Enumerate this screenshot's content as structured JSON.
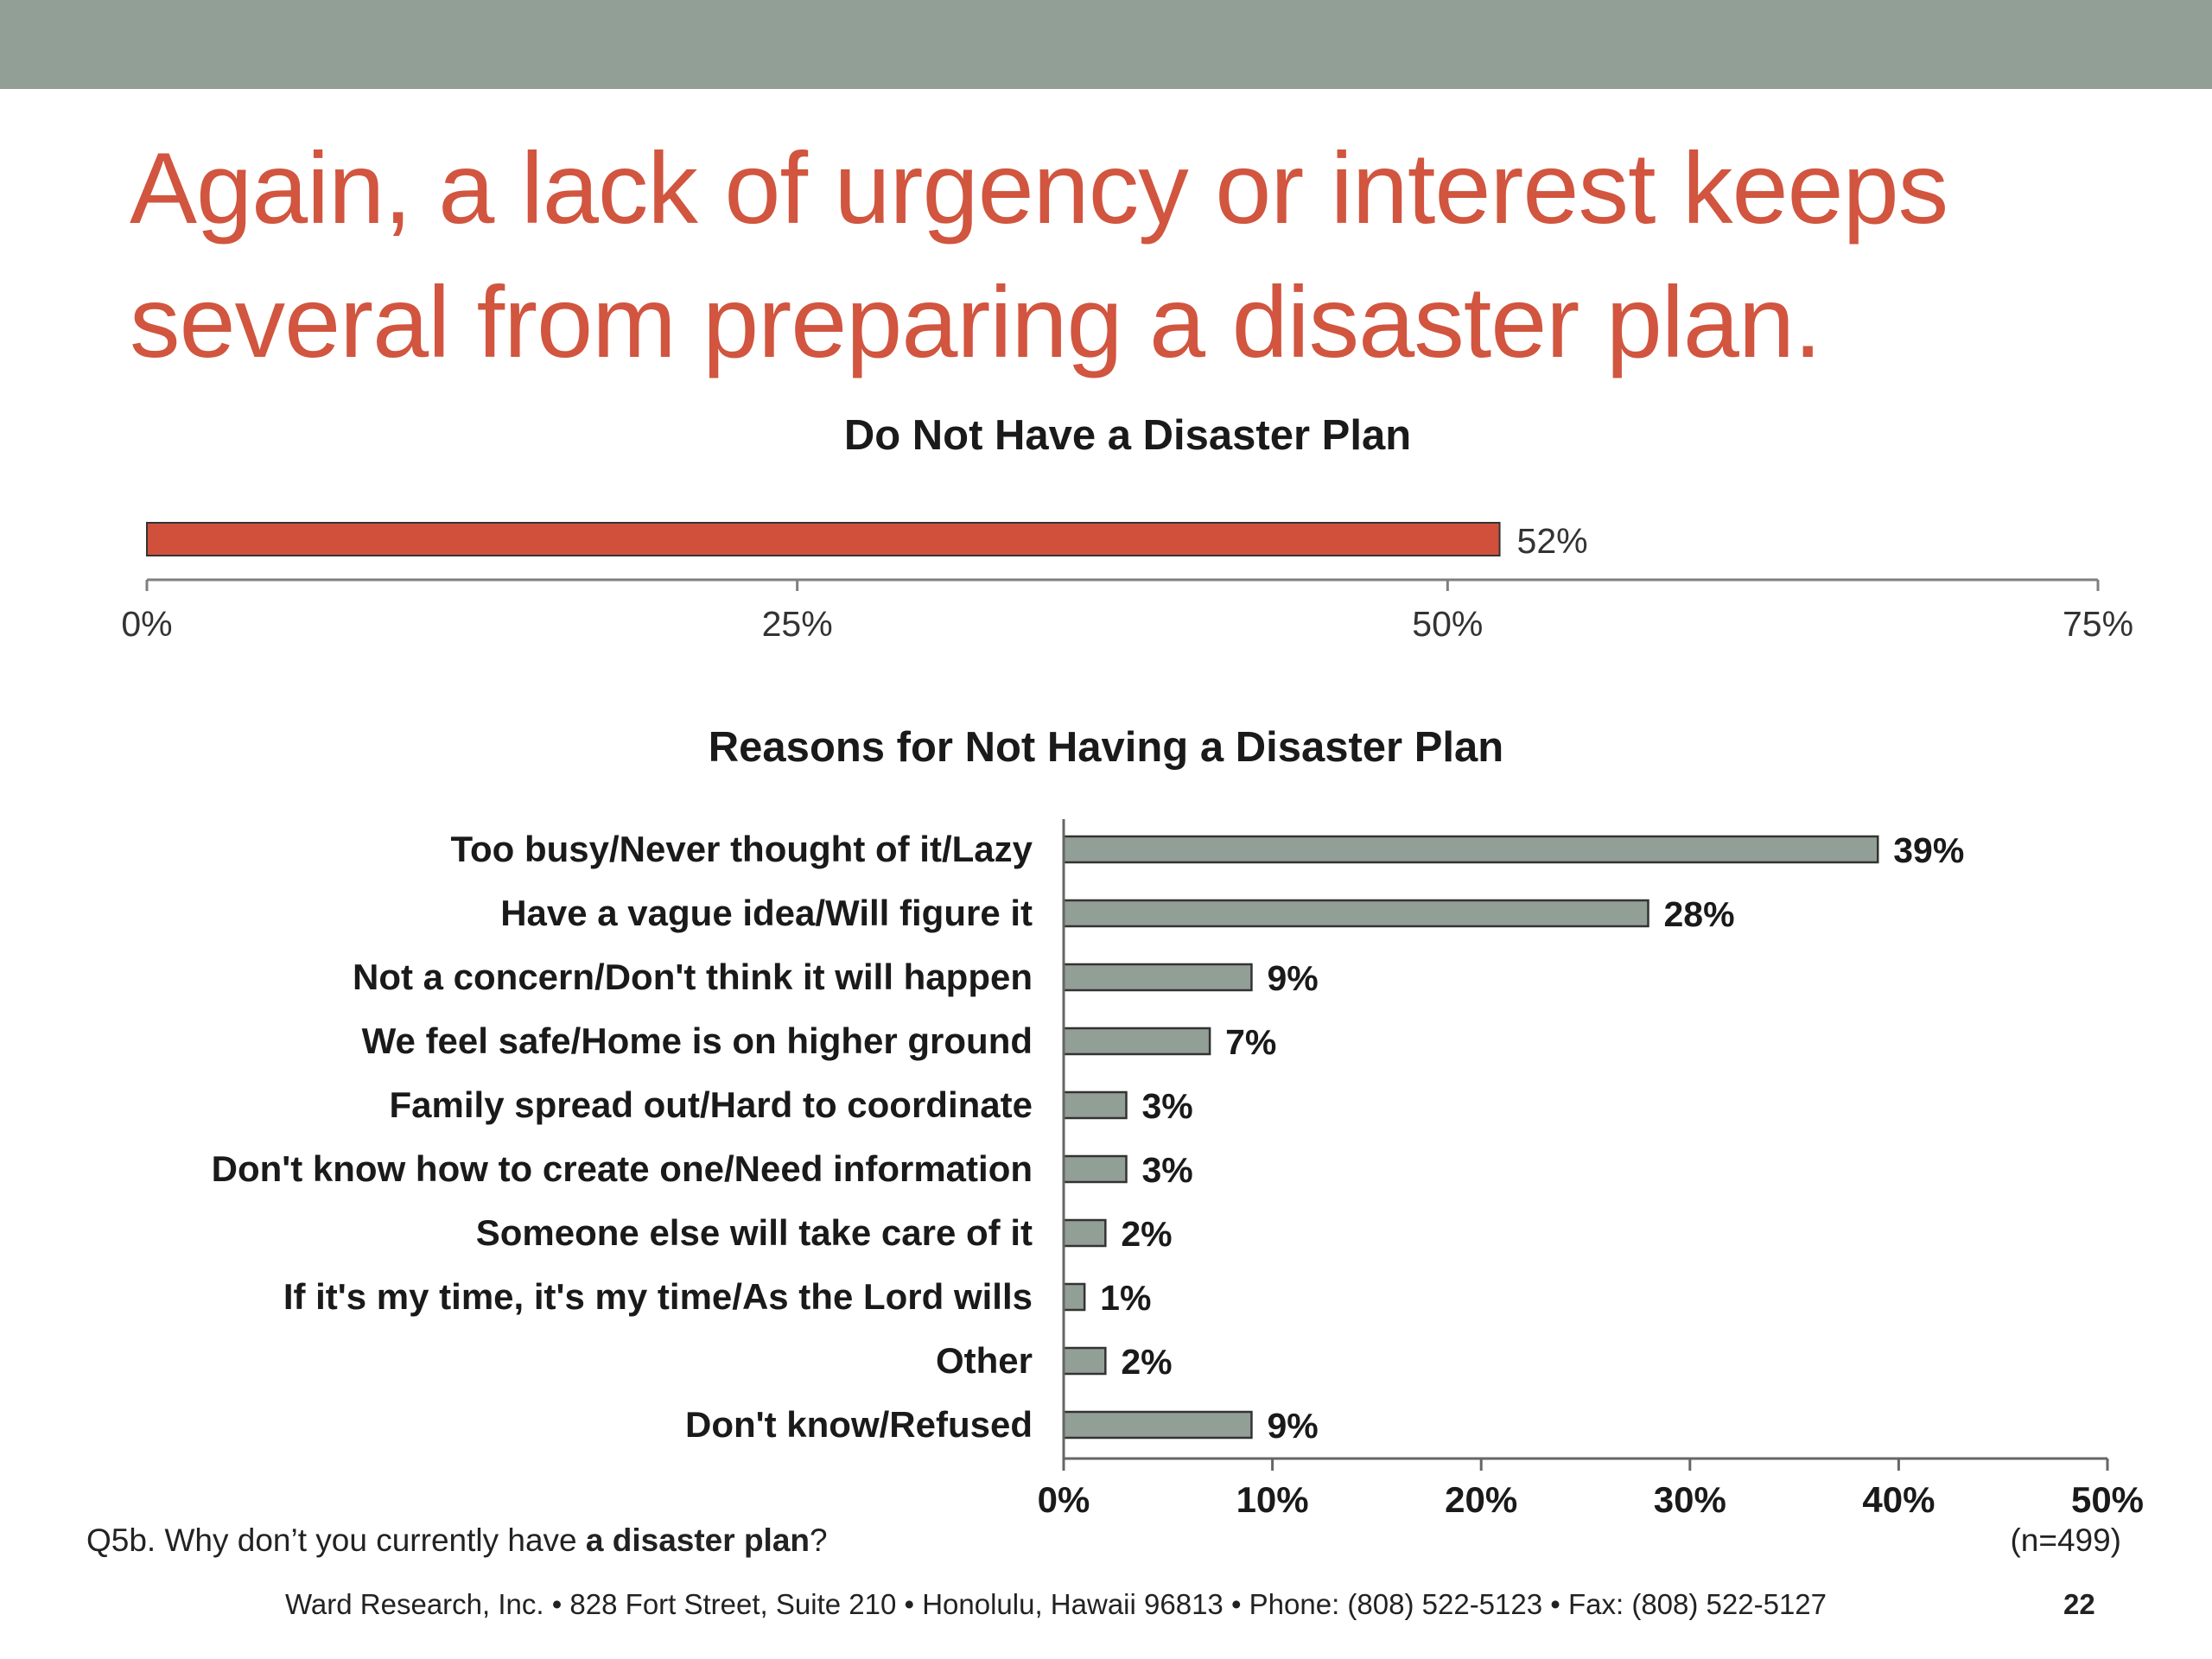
{
  "header": {
    "band_color": "#929f97"
  },
  "slide": {
    "title_line1": "Again, a lack of urgency or interest keeps",
    "title_line2": "several from preparing a disaster plan.",
    "title_color": "#d1553f"
  },
  "chart_data": [
    {
      "type": "bar",
      "orientation": "horizontal",
      "title": "Do Not Have a Disaster Plan",
      "categories": [
        ""
      ],
      "values": [
        52
      ],
      "value_labels": [
        "52%"
      ],
      "xlim": [
        0,
        75
      ],
      "ticks": [
        "0%",
        "25%",
        "50%",
        "75%"
      ],
      "tick_values": [
        0,
        25,
        50,
        75
      ],
      "bar_color": "#d1503c",
      "grid": false
    },
    {
      "type": "bar",
      "orientation": "horizontal",
      "title": "Reasons for Not Having a Disaster Plan",
      "categories": [
        "Too busy/Never thought of it/Lazy",
        "Have a vague idea/Will figure it",
        "Not a concern/Don't think it will happen",
        "We feel safe/Home is on higher ground",
        "Family spread out/Hard to coordinate",
        "Don't know how to create one/Need information",
        "Someone else will take care of it",
        "If it's my time, it's my time/As the Lord wills",
        "Other",
        "Don't know/Refused"
      ],
      "values": [
        39,
        28,
        9,
        7,
        3,
        3,
        2,
        1,
        2,
        9
      ],
      "value_labels": [
        "39%",
        "28%",
        "9%",
        "7%",
        "3%",
        "3%",
        "2%",
        "1%",
        "2%",
        "9%"
      ],
      "xlim": [
        0,
        50
      ],
      "ticks": [
        "0%",
        "10%",
        "20%",
        "30%",
        "40%",
        "50%"
      ],
      "tick_values": [
        0,
        10,
        20,
        30,
        40,
        50
      ],
      "bar_color": "#929f97",
      "grid": false
    }
  ],
  "footnote": {
    "question_prefix": "Q5b. Why don’t you currently have ",
    "question_bold": "a disaster plan",
    "question_suffix": "?",
    "sample_size": "(n=499)"
  },
  "footer": {
    "text": "Ward Research, Inc. • 828 Fort Street, Suite 210 • Honolulu, Hawaii 96813 • Phone: (808) 522-5123 • Fax: (808) 522-5127",
    "page_number": "22"
  }
}
